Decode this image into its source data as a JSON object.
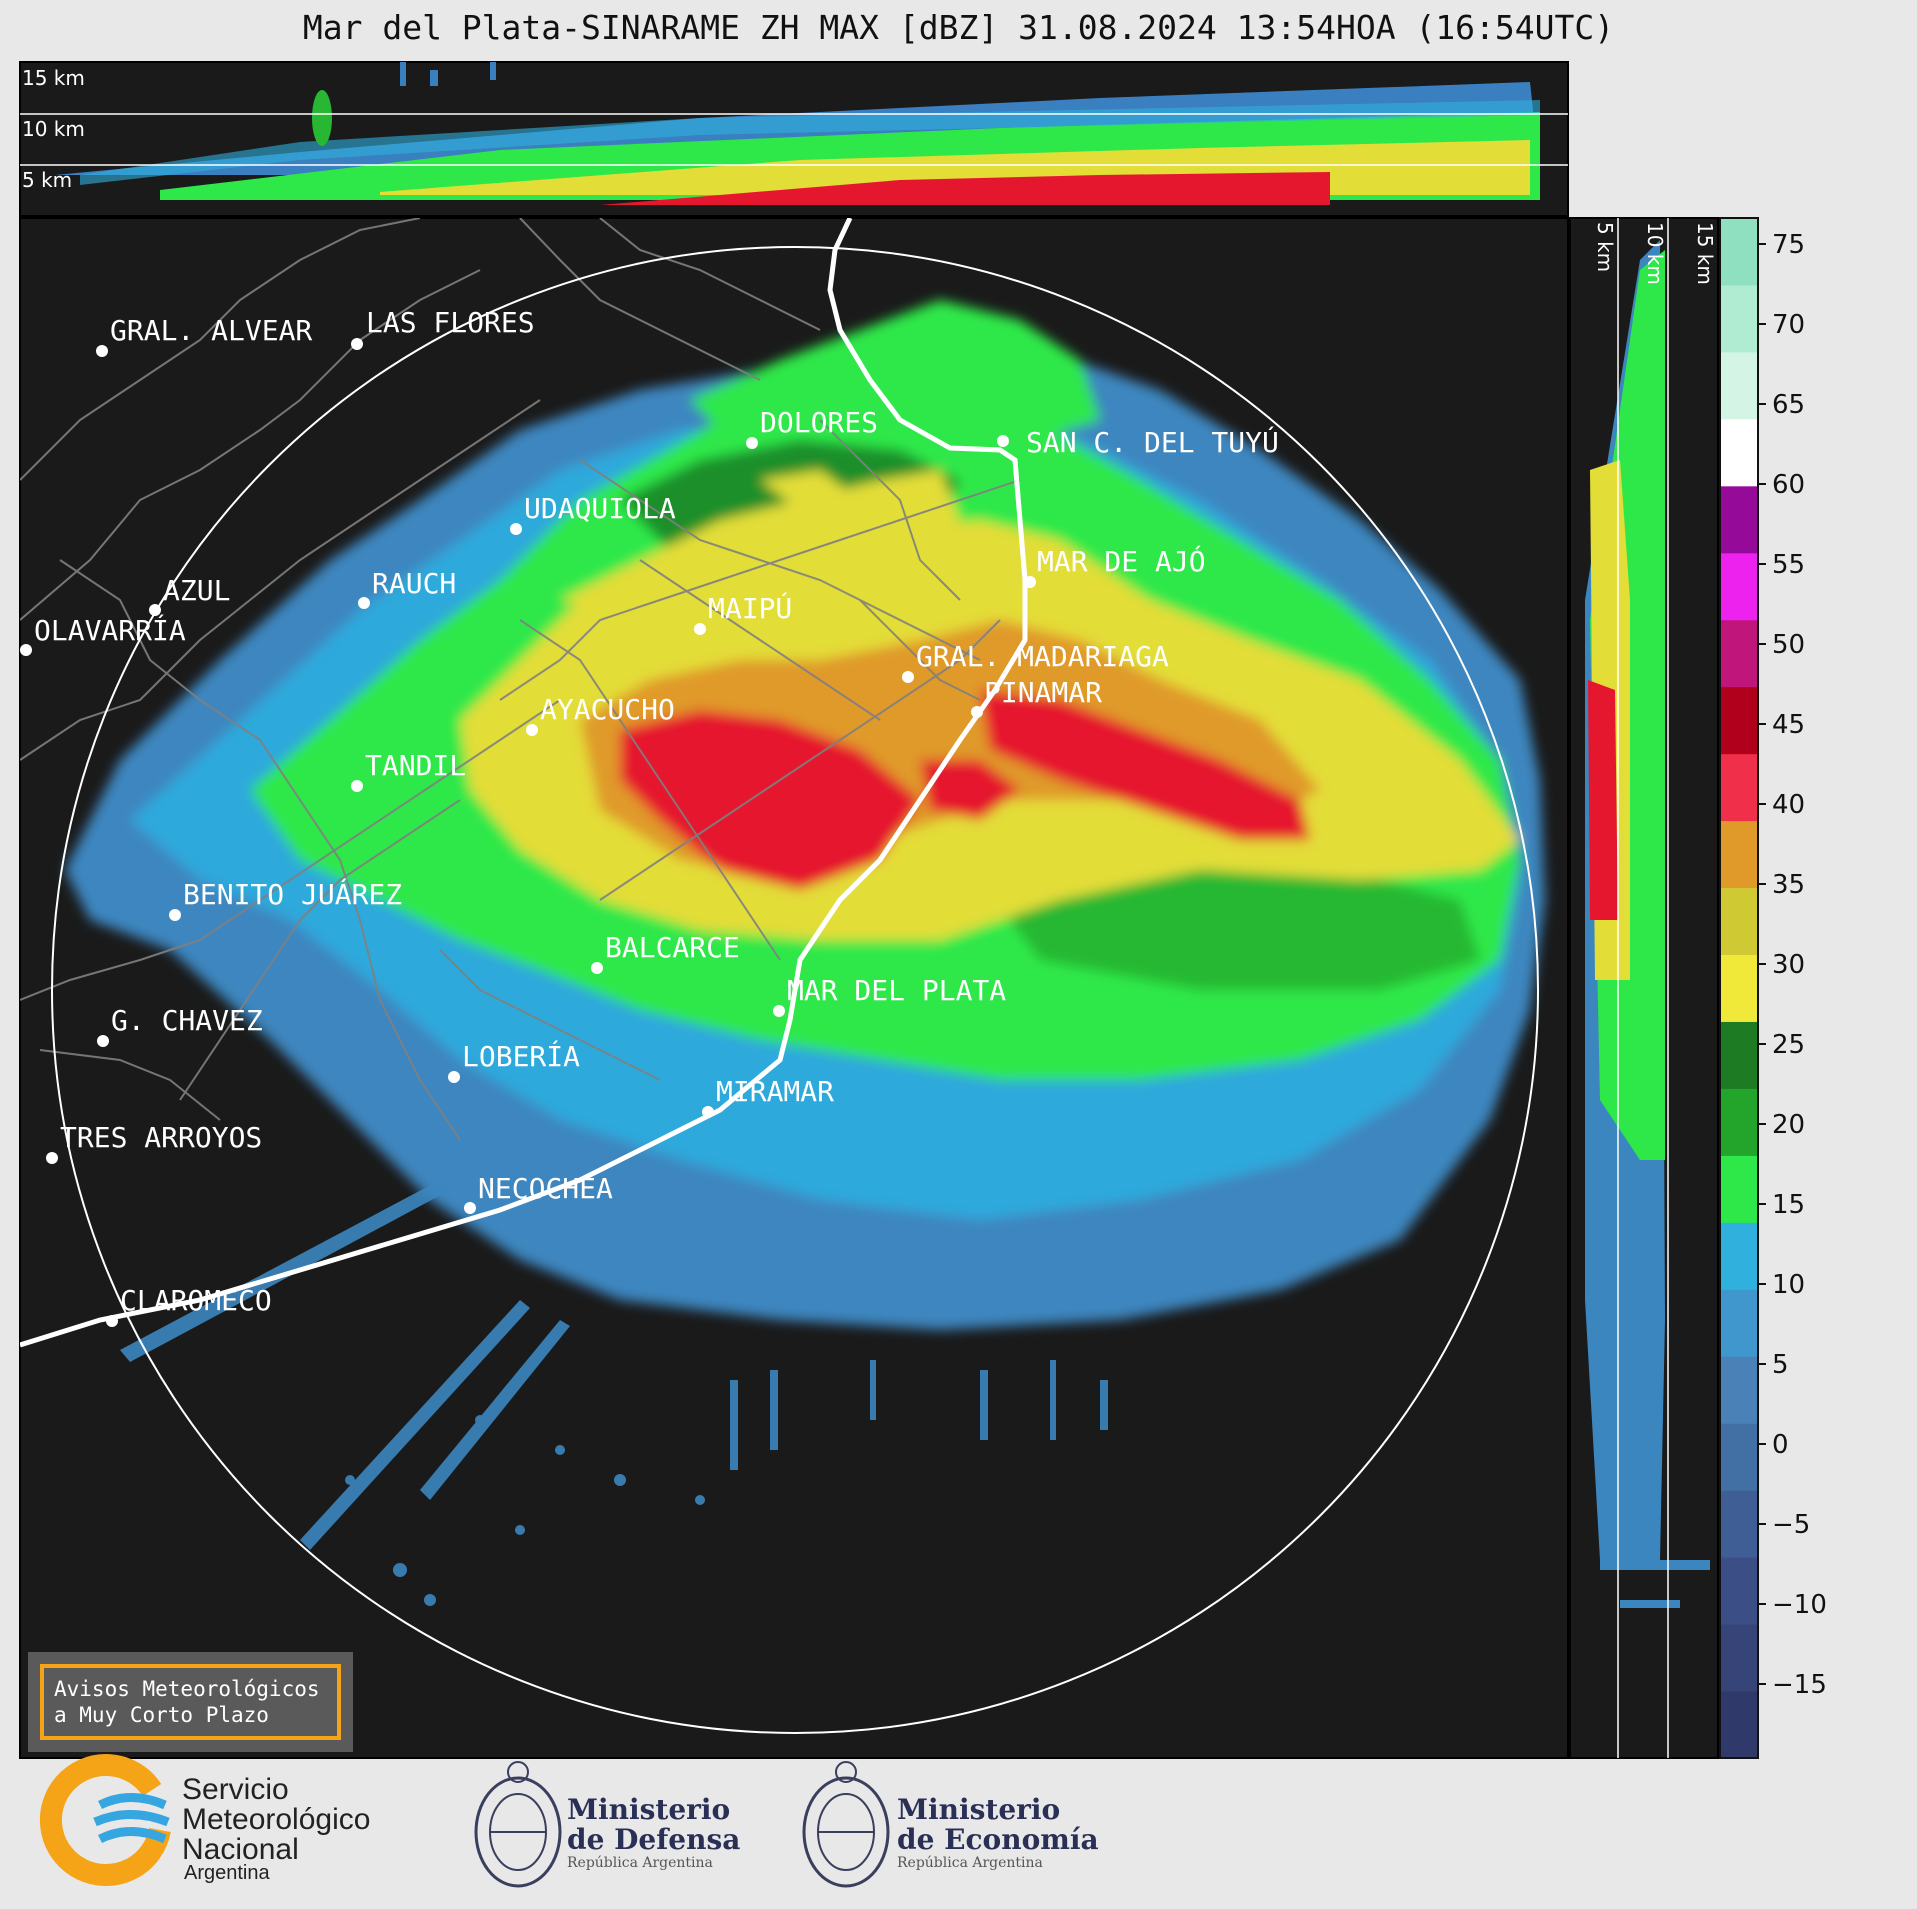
{
  "title": "Mar del Plata-SINARAME ZH MAX [dBZ] 31.08.2024 13:54HOA (16:54UTC)",
  "top_panel": {
    "labels": [
      "15 km",
      "10 km",
      "5 km"
    ]
  },
  "side_panel": {
    "labels": [
      "5 km",
      "10 km",
      "15 km"
    ]
  },
  "colorbar": {
    "ticks": [
      "75",
      "70",
      "65",
      "60",
      "55",
      "50",
      "45",
      "40",
      "35",
      "30",
      "25",
      "20",
      "15",
      "10",
      "5",
      "0",
      "−5",
      "−10",
      "−15"
    ],
    "colors": [
      "#2f3a6a",
      "#374478",
      "#3b4f86",
      "#3f5e95",
      "#4270a5",
      "#4a82b7",
      "#3f97cd",
      "#2fb0dd",
      "#2ee84a",
      "#23a42a",
      "#1d7b23",
      "#f1e93a",
      "#cfca34",
      "#e09a2a",
      "#f0304a",
      "#b0001c",
      "#c0157a",
      "#ee22ee",
      "#960a9a",
      "#ffffff",
      "#d4f5e6",
      "#b0ecd2",
      "#8fe0c0"
    ],
    "colors_note": ""
  },
  "cities": [
    {
      "name": "GRAL. ALVEAR"
    },
    {
      "name": "LAS FLORES"
    },
    {
      "name": "DOLORES"
    },
    {
      "name": "SAN C. DEL TUYÚ"
    },
    {
      "name": "UDAQUIOLA"
    },
    {
      "name": "MAR DE AJÓ"
    },
    {
      "name": "AZUL"
    },
    {
      "name": "RAUCH"
    },
    {
      "name": "MAIPÚ"
    },
    {
      "name": "OLAVARRÍA"
    },
    {
      "name": "GRAL. MADARIAGA"
    },
    {
      "name": "PINAMAR"
    },
    {
      "name": "AYACUCHO"
    },
    {
      "name": "TANDIL"
    },
    {
      "name": "BENITO JUÁREZ"
    },
    {
      "name": "BALCARCE"
    },
    {
      "name": "MAR DEL PLATA"
    },
    {
      "name": "G. CHAVEZ"
    },
    {
      "name": "LOBERÍA"
    },
    {
      "name": "MIRAMAR"
    },
    {
      "name": "TRES ARROYOS"
    },
    {
      "name": "NECOCHEA"
    },
    {
      "name": "CLAROMECO"
    }
  ],
  "avisos": {
    "line1": "Avisos Meteorológicos",
    "line2": "a Muy Corto Plazo"
  },
  "logos": {
    "smn": {
      "line1": "Servicio",
      "line2": "Meteorológico",
      "line3": "Nacional",
      "country": "Argentina"
    },
    "defensa": {
      "line1": "Ministerio",
      "line2": "de Defensa",
      "sub": "República Argentina"
    },
    "economia": {
      "line1": "Ministerio",
      "line2": "de Economía",
      "sub": "República Argentina"
    }
  }
}
